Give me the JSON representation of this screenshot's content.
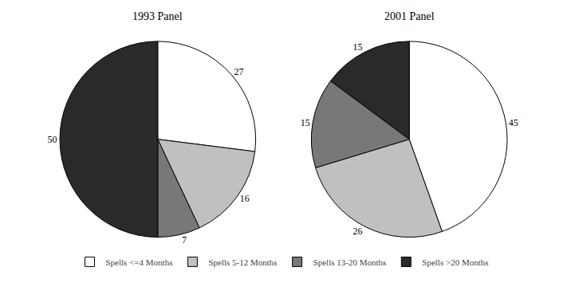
{
  "chart_data": [
    {
      "type": "pie",
      "title": "1993 Panel",
      "categories": [
        "Spells <=4 Months",
        "Spells 5-12 Months",
        "Spells 13-20 Months",
        "Spells >20 Months"
      ],
      "values": [
        27,
        16,
        7,
        50
      ],
      "colors": [
        "#ffffff",
        "#c0c0c0",
        "#787878",
        "#2a2a2a"
      ],
      "data_labels": true,
      "legend": "bottom"
    },
    {
      "type": "pie",
      "title": "2001 Panel",
      "categories": [
        "Spells <=4 Months",
        "Spells 5-12 Months",
        "Spells 13-20 Months",
        "Spells >20 Months"
      ],
      "values": [
        45,
        26,
        15,
        15
      ],
      "colors": [
        "#ffffff",
        "#c0c0c0",
        "#787878",
        "#2a2a2a"
      ],
      "data_labels": true,
      "legend": "bottom"
    }
  ]
}
